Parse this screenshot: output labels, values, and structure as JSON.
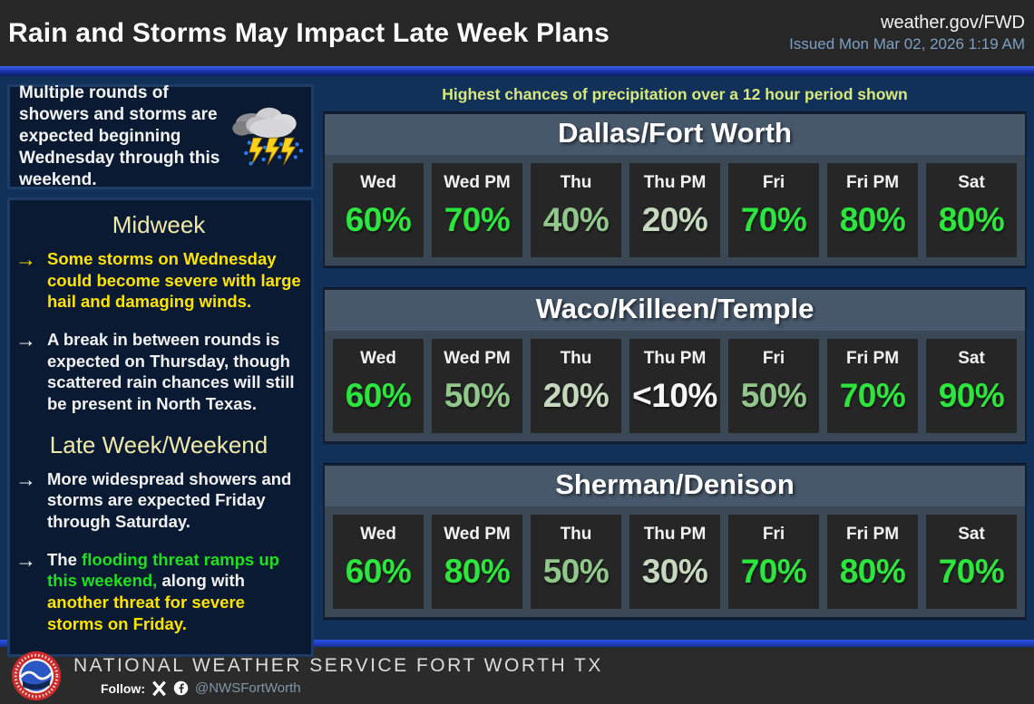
{
  "header": {
    "title": "Rain and Storms May Impact Late Week Plans",
    "site": "weather.gov/FWD",
    "issued": "Issued Mon Mar 02, 2026 1:19 AM"
  },
  "sidebar": {
    "intro": "Multiple rounds of showers and storms are expected beginning Wednesday through this weekend.",
    "sections": [
      {
        "heading": "Midweek",
        "bullets": [
          {
            "arrow_color": "yellow",
            "segments": [
              {
                "text": "Some storms on Wednesday could become severe with large hail and damaging winds.",
                "color": "yellow"
              }
            ]
          },
          {
            "arrow_color": "white",
            "segments": [
              {
                "text": "A break in between rounds is expected on Thursday, though scattered rain chances will still be present in North Texas.",
                "color": "white"
              }
            ]
          }
        ]
      },
      {
        "heading": "Late Week/Weekend",
        "bullets": [
          {
            "arrow_color": "white",
            "segments": [
              {
                "text": "More widespread showers and storms are expected Friday through Saturday.",
                "color": "white"
              }
            ]
          },
          {
            "arrow_color": "white",
            "segments": [
              {
                "text": "The ",
                "color": "white"
              },
              {
                "text": "flooding threat ramps up this weekend,",
                "color": "green"
              },
              {
                "text": " along with ",
                "color": "white"
              },
              {
                "text": "another threat for severe storms on Friday.",
                "color": "yellow"
              }
            ]
          }
        ]
      }
    ]
  },
  "main": {
    "note": "Highest chances of precipitation over a 12 hour period shown",
    "columns": [
      "Wed",
      "Wed PM",
      "Thu",
      "Thu PM",
      "Fri",
      "Fri PM",
      "Sat"
    ],
    "tables": [
      {
        "title": "Dallas/Fort Worth",
        "values": [
          "60%",
          "70%",
          "40%",
          "20%",
          "70%",
          "80%",
          "80%"
        ],
        "tiers": [
          "high",
          "high",
          "med",
          "low",
          "high",
          "high",
          "high"
        ]
      },
      {
        "title": "Waco/Killeen/Temple",
        "values": [
          "60%",
          "50%",
          "20%",
          "<10%",
          "50%",
          "70%",
          "90%"
        ],
        "tiers": [
          "high",
          "med",
          "low",
          "min",
          "med",
          "high",
          "high"
        ]
      },
      {
        "title": "Sherman/Denison",
        "values": [
          "60%",
          "80%",
          "50%",
          "30%",
          "70%",
          "80%",
          "70%"
        ],
        "tiers": [
          "high",
          "high",
          "med",
          "low",
          "high",
          "high",
          "high"
        ]
      }
    ]
  },
  "footer": {
    "org": "NATIONAL WEATHER SERVICE FORT WORTH TX",
    "follow_label": "Follow:",
    "handle": "@NWSFortWorth"
  },
  "icons": {
    "storm": "storm-cloud-lightning-icon",
    "logo": "nws-seal-icon",
    "x": "x-social-icon",
    "facebook": "facebook-icon",
    "bullet_arrow": "arrow-right-icon"
  },
  "colors": {
    "header_charcoal": "#272727",
    "panel_navy": "#123159",
    "box_navy": "#0a1a33",
    "accent_blue_strip": "#2a55e8",
    "table_header_slate": "#47586b",
    "cell_charcoal": "#262626",
    "bright_green": "#2ce63e",
    "medium_green": "#92c78c",
    "pale_green": "#c6d8bd",
    "white_value": "#f5f5f5",
    "bullet_yellow": "#ffe400",
    "flood_green": "#1ee11e",
    "heading_pale_yellow": "#efe9a9",
    "note_yellow_green": "#d8e87f",
    "issued_steel_blue": "#7fa0c4"
  },
  "chart_data": {
    "type": "table",
    "title": "Highest chances of precipitation over a 12 hour period shown",
    "columns": [
      "Wed",
      "Wed PM",
      "Thu",
      "Thu PM",
      "Fri",
      "Fri PM",
      "Sat"
    ],
    "rows": [
      {
        "region": "Dallas/Fort Worth",
        "values": [
          "60%",
          "70%",
          "40%",
          "20%",
          "70%",
          "80%",
          "80%"
        ]
      },
      {
        "region": "Waco/Killeen/Temple",
        "values": [
          "60%",
          "50%",
          "20%",
          "<10%",
          "50%",
          "70%",
          "90%"
        ]
      },
      {
        "region": "Sherman/Denison",
        "values": [
          "60%",
          "80%",
          "50%",
          "30%",
          "70%",
          "80%",
          "70%"
        ]
      }
    ]
  }
}
